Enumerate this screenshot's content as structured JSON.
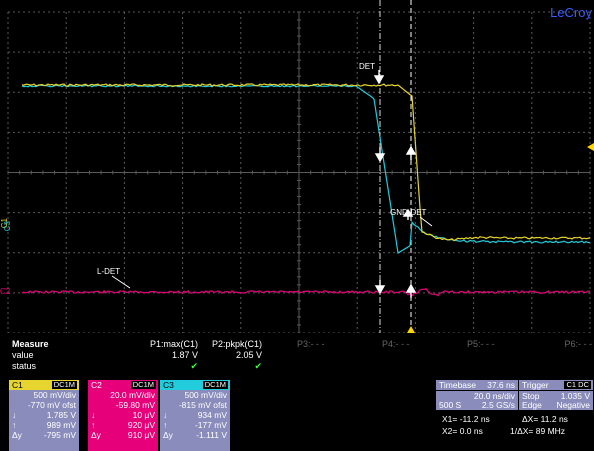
{
  "brand": "LeCroy",
  "colors": {
    "c1": "#e6d52e",
    "c2": "#e6007a",
    "c3": "#22ccdd",
    "grid": "#5a5a5a",
    "trigger": "#ffd400",
    "panel": "#8a8cbc"
  },
  "markers": {
    "c1": "C1",
    "c3": "C3",
    "c2": "C2"
  },
  "annotations": {
    "det": "DET",
    "gnd_det": "GND-DET",
    "l_det": "L-DET"
  },
  "measure": {
    "header": [
      "Measure",
      "P1:max(C1)",
      "P2:pkpk(C1)",
      "P3:- - -",
      "P4:- - -",
      "P5:- - -",
      "P6:- - -"
    ],
    "row_labels": [
      "value",
      "status"
    ],
    "values": [
      "1.87 V",
      "2.05 V"
    ],
    "status": [
      "✔",
      "✔"
    ]
  },
  "channels": [
    {
      "name": "C1",
      "coupling": "DC1M",
      "lines": [
        "500 mV/div",
        "-770 mV ofst",
        "1.785 V",
        "989 mV",
        "-795 mV"
      ],
      "symbols": [
        "",
        "",
        "↓",
        "↑",
        "Δy"
      ]
    },
    {
      "name": "C2",
      "coupling": "DC1M",
      "lines": [
        "20.0 mV/div",
        "-59.80 mV",
        "10 μV",
        "920 μV",
        "910 μV"
      ],
      "symbols": [
        "",
        "",
        "↓",
        "↑",
        "Δy"
      ]
    },
    {
      "name": "C3",
      "coupling": "DC1M",
      "lines": [
        "500 mV/div",
        "-815 mV ofst",
        "934 mV",
        "-177 mV",
        "-1.111 V"
      ],
      "symbols": [
        "",
        "",
        "↓",
        "↑",
        "Δy"
      ]
    }
  ],
  "timebase": {
    "label": "Timebase",
    "delay": "37.6 ns",
    "per_div": "20.0 ns/div",
    "samples": "500 S",
    "rate": "2.5 GS/s"
  },
  "trigger": {
    "label": "Trigger",
    "source": "C1 DC",
    "mode": "Stop",
    "level": "1.035 V",
    "type": "Edge",
    "slope": "Negative"
  },
  "cursors": {
    "x1": "X1= -11.2 ns",
    "dx": "ΔX= 11.2 ns",
    "x2": "X2= 0.0 ns",
    "inv_dx": "1/ΔX= 89 MHz"
  }
}
